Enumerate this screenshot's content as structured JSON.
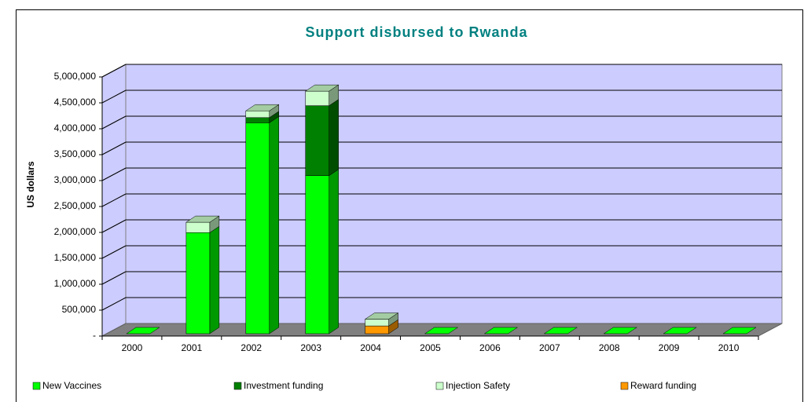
{
  "chart_data": {
    "type": "bar3d_stacked",
    "title": "Support disbursed to Rwanda",
    "y_label": "US dollars",
    "categories": [
      "2000",
      "2001",
      "2002",
      "2003",
      "2004",
      "2005",
      "2006",
      "2007",
      "2008",
      "2009",
      "2010"
    ],
    "series": [
      {
        "name": "New Vaccines",
        "color": "#00ff00",
        "values": [
          0,
          1950000,
          4070000,
          3050000,
          0,
          0,
          0,
          0,
          0,
          0,
          0
        ]
      },
      {
        "name": "Investment funding",
        "color": "#008000",
        "values": [
          0,
          0,
          100000,
          1350000,
          0,
          0,
          0,
          0,
          0,
          0,
          0
        ]
      },
      {
        "name": "Injection Safety",
        "color": "#ccffcc",
        "values": [
          0,
          200000,
          130000,
          280000,
          130000,
          0,
          0,
          0,
          0,
          0,
          0
        ]
      },
      {
        "name": "Reward funding",
        "color": "#ff9900",
        "values": [
          0,
          0,
          0,
          0,
          150000,
          0,
          0,
          0,
          0,
          0,
          0
        ]
      }
    ],
    "ylim": [
      0,
      5000000
    ],
    "yticks": [
      {
        "value": 0,
        "label": "-"
      },
      {
        "value": 500000,
        "label": "500,000"
      },
      {
        "value": 1000000,
        "label": "1,000,000"
      },
      {
        "value": 1500000,
        "label": "1,500,000"
      },
      {
        "value": 2000000,
        "label": "2,000,000"
      },
      {
        "value": 2500000,
        "label": "2,500,000"
      },
      {
        "value": 3000000,
        "label": "3,000,000"
      },
      {
        "value": 3500000,
        "label": "3,500,000"
      },
      {
        "value": 4000000,
        "label": "4,000,000"
      },
      {
        "value": 4500000,
        "label": "4,500,000"
      },
      {
        "value": 5000000,
        "label": "5,000,000"
      }
    ],
    "grid": true,
    "legend": "bottom"
  }
}
